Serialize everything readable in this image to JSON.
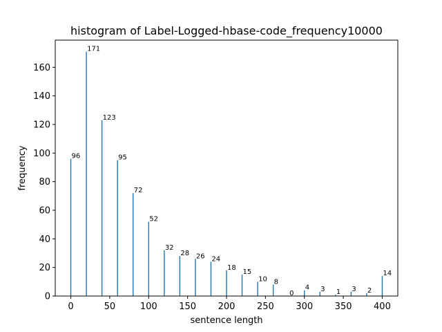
{
  "chart_data": {
    "type": "bar",
    "title": "histogram of Label-Logged-hbase-code_frequency10000",
    "xlabel": "sentence length",
    "ylabel": "frequency",
    "xlim": [
      -20,
      420
    ],
    "ylim": [
      0,
      179
    ],
    "xticks": [
      0,
      50,
      100,
      150,
      200,
      250,
      300,
      350,
      400
    ],
    "yticks": [
      0,
      20,
      40,
      60,
      80,
      100,
      120,
      140,
      160
    ],
    "grid": false,
    "bar_color": "#1f77b4",
    "x": [
      0,
      20,
      40,
      60,
      80,
      100,
      120,
      140,
      160,
      180,
      200,
      220,
      240,
      260,
      280,
      300,
      320,
      340,
      360,
      380,
      400
    ],
    "values": [
      96,
      171,
      123,
      95,
      72,
      52,
      32,
      28,
      26,
      24,
      18,
      15,
      10,
      8,
      0,
      4,
      3,
      1,
      3,
      2,
      14
    ]
  }
}
